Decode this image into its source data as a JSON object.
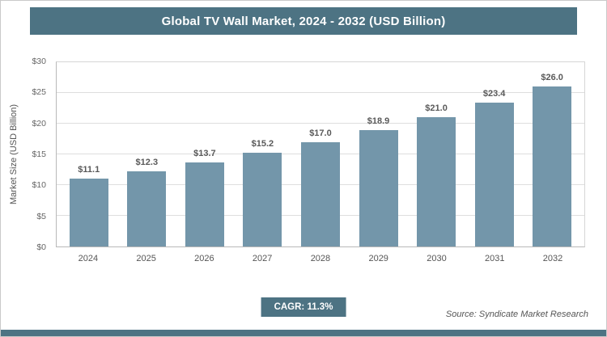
{
  "chart_data": {
    "type": "bar",
    "title": "Global TV Wall Market, 2024 - 2032 (USD Billion)",
    "categories": [
      "2024",
      "2025",
      "2026",
      "2027",
      "2028",
      "2029",
      "2030",
      "2031",
      "2032"
    ],
    "values": [
      11.1,
      12.3,
      13.7,
      15.2,
      17.0,
      18.9,
      21.0,
      23.4,
      26.0
    ],
    "value_labels": [
      "$11.1",
      "$12.3",
      "$13.7",
      "$15.2",
      "$17.0",
      "$18.9",
      "$21.0",
      "$23.4",
      "$26.0"
    ],
    "xlabel": "",
    "ylabel": "Market Size (USD Billion)",
    "ylim": [
      0,
      30
    ],
    "ytick_step": 5,
    "ytick_labels": [
      "$0",
      "$5",
      "$10",
      "$15",
      "$20",
      "$25",
      "$30"
    ],
    "grid": true,
    "legend": "none",
    "bar_color": "#7396aa",
    "accent_color": "#4d7383"
  },
  "footer": {
    "cagr_label": "CAGR: 11.3%",
    "source": "Source: Syndicate Market Research"
  }
}
